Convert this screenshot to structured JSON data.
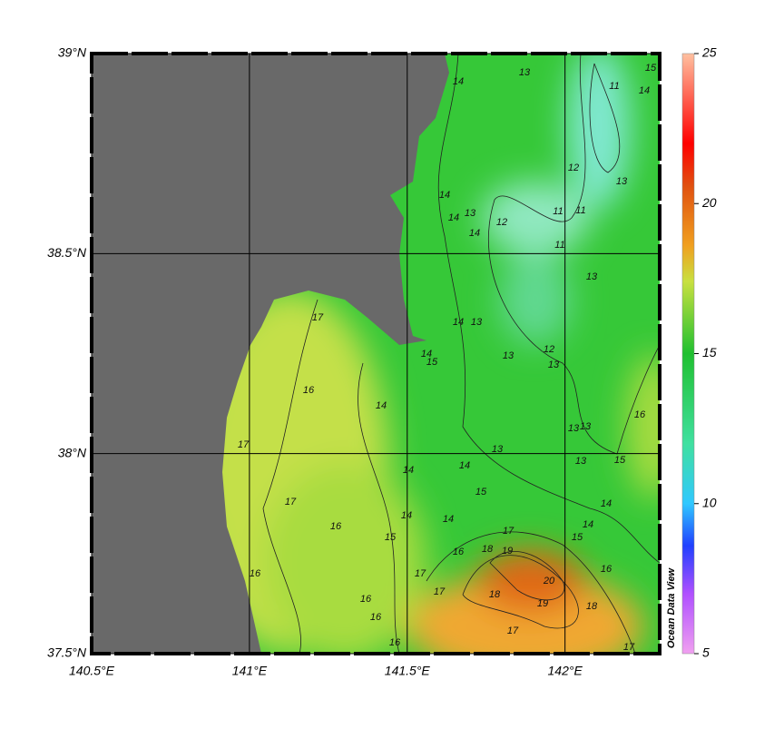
{
  "map": {
    "xlim": [
      140.5,
      142.3
    ],
    "ylim": [
      37.5,
      39
    ],
    "xticks": [
      {
        "value": 140.5,
        "label": "140.5°E"
      },
      {
        "value": 141,
        "label": "141°E"
      },
      {
        "value": 141.5,
        "label": "141.5°E"
      },
      {
        "value": 142,
        "label": "142°E"
      }
    ],
    "yticks": [
      {
        "value": 37.5,
        "label": "37.5°N"
      },
      {
        "value": 38,
        "label": "38°N"
      },
      {
        "value": 38.5,
        "label": "38.5°N"
      },
      {
        "value": 39,
        "label": "39°N"
      }
    ],
    "grid": true,
    "contour_labels": [
      "13",
      "11",
      "14",
      "15",
      "14",
      "12",
      "13",
      "14",
      "14",
      "13",
      "12",
      "11",
      "11",
      "11",
      "14",
      "13",
      "14",
      "13",
      "17",
      "13",
      "12",
      "13",
      "14",
      "15",
      "16",
      "14",
      "16",
      "13",
      "13",
      "17",
      "13",
      "13",
      "15",
      "14",
      "14",
      "15",
      "14",
      "17",
      "16",
      "15",
      "14",
      "14",
      "15",
      "14",
      "17",
      "18",
      "19",
      "16",
      "20",
      "16",
      "17",
      "17",
      "18",
      "19",
      "18",
      "16",
      "16",
      "17",
      "16",
      "17",
      "16"
    ]
  },
  "colorbar": {
    "range": [
      5,
      25
    ],
    "ticks": [
      5,
      10,
      15,
      20,
      25
    ],
    "label": "Ocean Data View"
  }
}
